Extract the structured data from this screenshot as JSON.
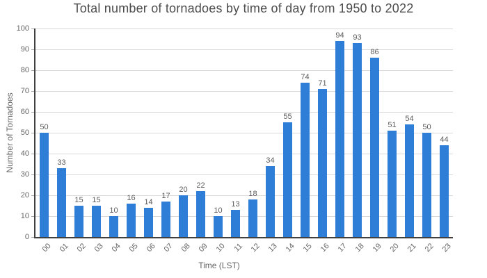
{
  "chart_data": {
    "type": "bar",
    "title": "Total number of tornadoes by time of day from 1950 to 2022",
    "xlabel": "Time (LST)",
    "ylabel": "Number of Tornadoes",
    "categories": [
      "00",
      "01",
      "02",
      "03",
      "04",
      "05",
      "06",
      "07",
      "08",
      "09",
      "10",
      "11",
      "12",
      "13",
      "14",
      "15",
      "16",
      "17",
      "18",
      "19",
      "20",
      "21",
      "22",
      "23"
    ],
    "values": [
      50,
      33,
      15,
      15,
      10,
      16,
      14,
      17,
      20,
      22,
      10,
      13,
      18,
      34,
      55,
      74,
      71,
      94,
      93,
      86,
      51,
      54,
      50,
      44
    ],
    "ylim": [
      0,
      100
    ],
    "yticks": [
      0,
      10,
      20,
      30,
      40,
      50,
      60,
      70,
      80,
      90,
      100
    ],
    "grid": "horizontal",
    "legend": "none",
    "bar_value_labels": true,
    "colors": {
      "bar": "#2e7ed7",
      "grid": "#d9d9d9",
      "axis": "#404040",
      "tick_label": "#666666",
      "value_label": "#595959",
      "title": "#4d4d4d",
      "background": "#ffffff"
    }
  }
}
